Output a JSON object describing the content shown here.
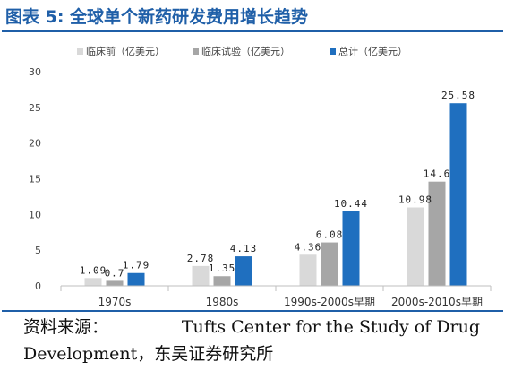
{
  "title": "图表 5: 全球单个新药研发费用增长趋势",
  "source": {
    "label": "资料来源：",
    "text": "Tufts Center for the Study of Drug",
    "line2": "Development，东吴证券研究所"
  },
  "colors": {
    "preclinical": "#d9d9d9",
    "clinical": "#a6a6a6",
    "total": "#1f6fbf",
    "accent": "#1f5fa8"
  },
  "chart_data": {
    "type": "bar",
    "title": "",
    "xlabel": "",
    "ylabel": "",
    "ylim": [
      0,
      30
    ],
    "yticks": [
      0,
      5,
      10,
      15,
      20,
      25,
      30
    ],
    "grid": false,
    "legend_position": "top",
    "categories": [
      "1970s",
      "1980s",
      "1990s-2000s早期",
      "2000s-2010s早期"
    ],
    "series": [
      {
        "name": "临床前（亿美元）",
        "values": [
          1.09,
          2.78,
          4.36,
          10.98
        ],
        "labels": [
          "1.09",
          "2.78",
          "4.36",
          "10.98"
        ]
      },
      {
        "name": "临床试验（亿美元）",
        "values": [
          0.7,
          1.35,
          6.08,
          14.6
        ],
        "labels": [
          "0.7",
          "1.35",
          "6.08",
          "14.6"
        ]
      },
      {
        "name": "总计（亿美元）",
        "values": [
          1.79,
          4.13,
          10.44,
          25.58
        ],
        "labels": [
          "1.79",
          "4.13",
          "10.44",
          "25.58"
        ]
      }
    ]
  }
}
